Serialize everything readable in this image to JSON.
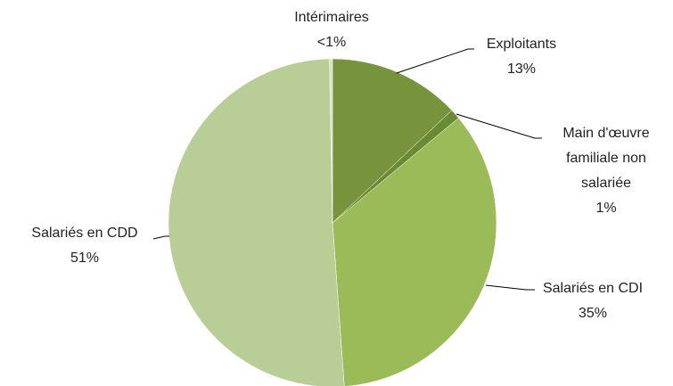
{
  "chart_data": {
    "type": "pie",
    "categories": [
      "Exploitants",
      "Main d'œuvre familiale non salariée",
      "Salariés en CDI",
      "Salariés en CDD",
      "Intérimaires"
    ],
    "values": [
      13,
      1,
      35,
      51,
      0.3
    ],
    "value_labels": [
      "13%",
      "1%",
      "35%",
      "51%",
      "<1%"
    ],
    "colors": [
      "#77933c",
      "#6a8a33",
      "#9bbb59",
      "#b9cd96",
      "#d7e4bd"
    ]
  }
}
